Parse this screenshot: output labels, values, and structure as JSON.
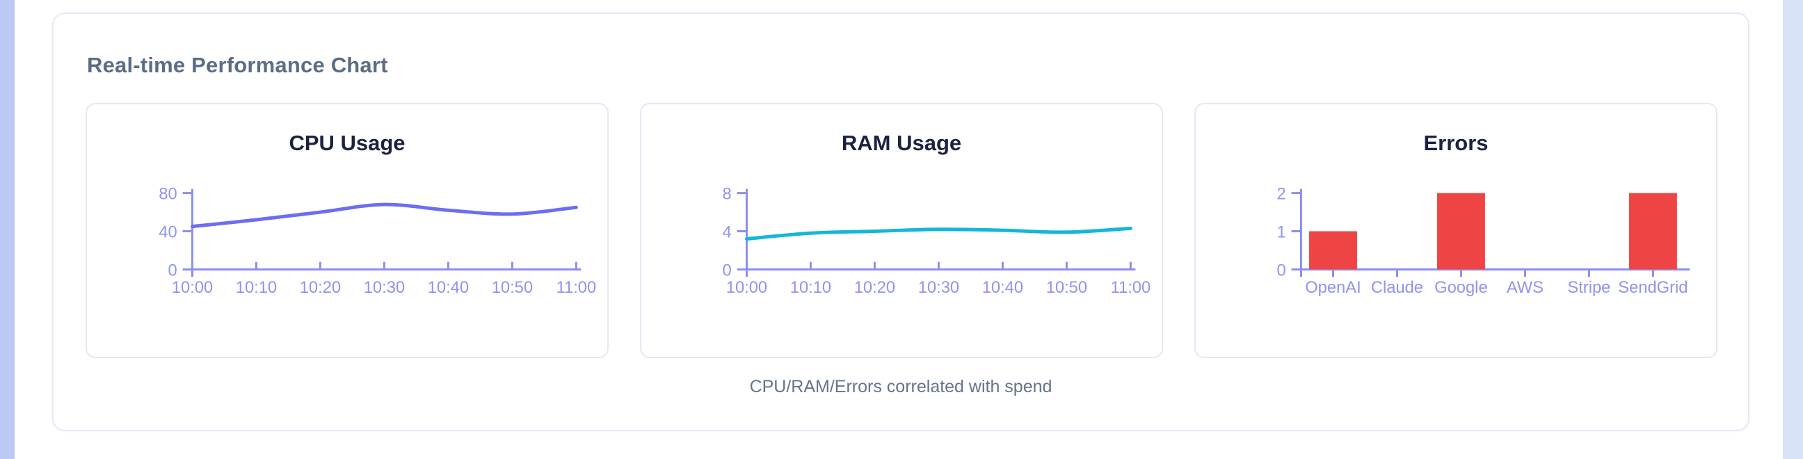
{
  "page": {
    "title": "Real-time Performance Chart",
    "caption": "CPU/RAM/Errors correlated with spend"
  },
  "colors": {
    "panel_title": "#5b6c86",
    "caption_text": "#64748b",
    "chart_title": "#1c2340",
    "axis": "#8b8df0",
    "tick_label": "#9093f3",
    "cpu_line": "#6b6df2",
    "ram_line": "#15b7d6",
    "error_bar": "#ef4444",
    "card_border": "#e4e8f5",
    "left_strip": "#bcc9f5",
    "right_strip": "#d8e3f8"
  },
  "chart_data": [
    {
      "type": "line",
      "title": "CPU Usage",
      "x": [
        "10:00",
        "10:10",
        "10:20",
        "10:30",
        "10:40",
        "10:50",
        "11:00"
      ],
      "values": [
        45,
        52,
        60,
        68,
        62,
        58,
        65
      ],
      "yticks": [
        0,
        40,
        80
      ],
      "ylim": [
        0,
        80
      ],
      "xlabel": "",
      "ylabel": "",
      "grid": false,
      "legend": "none",
      "color_key": "cpu_line"
    },
    {
      "type": "line",
      "title": "RAM Usage",
      "x": [
        "10:00",
        "10:10",
        "10:20",
        "10:30",
        "10:40",
        "10:50",
        "11:00"
      ],
      "values": [
        3.2,
        3.8,
        4.0,
        4.2,
        4.1,
        3.9,
        4.3
      ],
      "yticks": [
        0,
        4,
        8
      ],
      "ylim": [
        0,
        8
      ],
      "xlabel": "",
      "ylabel": "",
      "grid": false,
      "legend": "none",
      "color_key": "ram_line"
    },
    {
      "type": "bar",
      "title": "Errors",
      "categories": [
        "OpenAI",
        "Claude",
        "Google",
        "AWS",
        "Stripe",
        "SendGrid"
      ],
      "values": [
        1,
        0,
        2,
        0,
        0,
        2
      ],
      "yticks": [
        0,
        1,
        2
      ],
      "ylim": [
        0,
        2
      ],
      "xlabel": "",
      "ylabel": "",
      "grid": false,
      "legend": "none",
      "color_key": "error_bar"
    }
  ]
}
